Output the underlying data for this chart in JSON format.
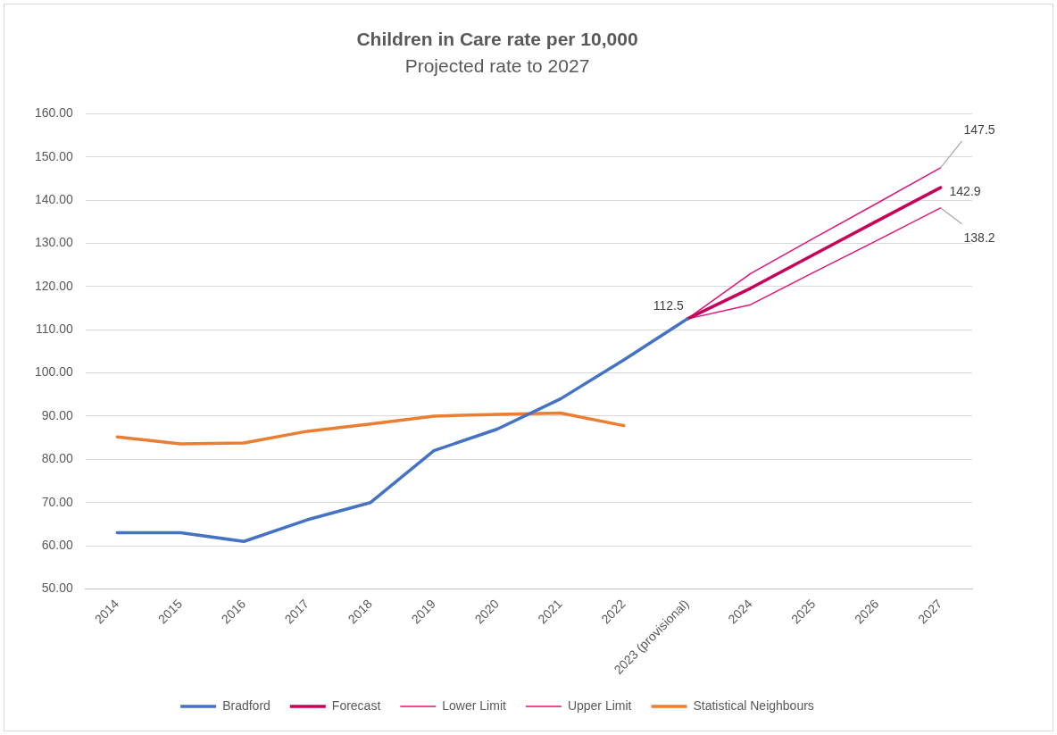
{
  "chart_data": {
    "type": "line",
    "title": "Children in Care rate per 10,000",
    "subtitle": "Projected rate to 2027",
    "categories": [
      "2014",
      "2015",
      "2016",
      "2017",
      "2018",
      "2019",
      "2020",
      "2021",
      "2022",
      "2023 (provisional)",
      "2024",
      "2025",
      "2026",
      "2027"
    ],
    "series": [
      {
        "name": "Bradford",
        "color": "#4472c4",
        "values": [
          63,
          63,
          61,
          66,
          70,
          82,
          87,
          94,
          103,
          112.5,
          null,
          null,
          null,
          null
        ]
      },
      {
        "name": "Forecast",
        "color": "#c8005a",
        "values": [
          null,
          null,
          null,
          null,
          null,
          null,
          null,
          null,
          null,
          112.5,
          119.6,
          127.4,
          135.2,
          142.9
        ],
        "value_labels": [
          null,
          null,
          null,
          null,
          null,
          null,
          null,
          null,
          null,
          "112.5",
          null,
          null,
          null,
          "142.9"
        ]
      },
      {
        "name": "Lower Limit",
        "color": "#e0137a",
        "values": [
          null,
          null,
          null,
          null,
          null,
          null,
          null,
          null,
          null,
          112.5,
          115.8,
          123.3,
          130.7,
          138.2
        ],
        "value_labels": [
          null,
          null,
          null,
          null,
          null,
          null,
          null,
          null,
          null,
          null,
          null,
          null,
          null,
          "138.2"
        ]
      },
      {
        "name": "Upper Limit",
        "color": "#e0137a",
        "values": [
          null,
          null,
          null,
          null,
          null,
          null,
          null,
          null,
          null,
          112.5,
          123,
          131.2,
          139.3,
          147.5
        ],
        "value_labels": [
          null,
          null,
          null,
          null,
          null,
          null,
          null,
          null,
          null,
          null,
          null,
          null,
          null,
          "147.5"
        ]
      },
      {
        "name": "Statistical Neighbours",
        "color": "#ed7d31",
        "values": [
          85.2,
          83.6,
          83.8,
          86.5,
          88.2,
          90,
          90.4,
          90.7,
          87.8,
          null,
          null,
          null,
          null,
          null
        ]
      }
    ],
    "ylim": [
      50,
      160
    ],
    "yticks": [
      {
        "value": 50,
        "label": "50.00"
      },
      {
        "value": 60,
        "label": "60.00"
      },
      {
        "value": 70,
        "label": "70.00"
      },
      {
        "value": 80,
        "label": "80.00"
      },
      {
        "value": 90,
        "label": "90.00"
      },
      {
        "value": 100,
        "label": "100.00"
      },
      {
        "value": 110,
        "label": "110.00"
      },
      {
        "value": 120,
        "label": "120.00"
      },
      {
        "value": 130,
        "label": "130.00"
      },
      {
        "value": 140,
        "label": "140.00"
      },
      {
        "value": 150,
        "label": "150.00"
      },
      {
        "value": 160,
        "label": "160.00"
      }
    ],
    "grid": "y",
    "legend": "bottom",
    "marker": "none",
    "line_style": "solid"
  }
}
